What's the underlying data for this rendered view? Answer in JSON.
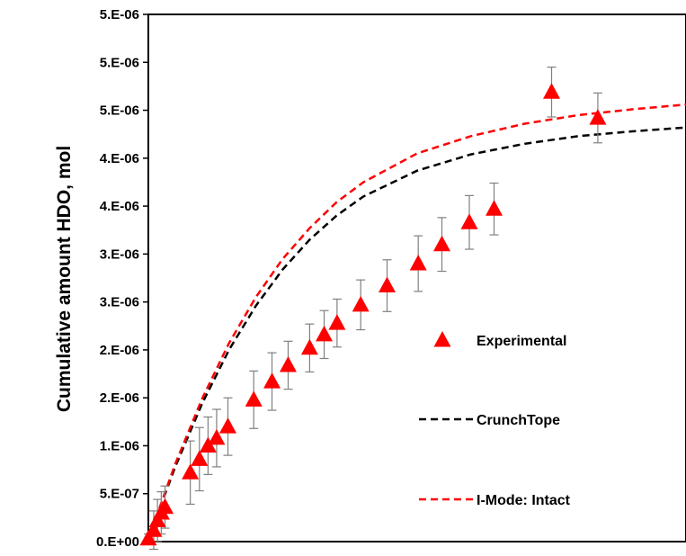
{
  "chart_data": {
    "type": "scatter",
    "title": "",
    "xlabel": "",
    "ylabel": "Cumulative amount HDO, mol",
    "ylim": [
      0,
      5.5e-06
    ],
    "xlim": [
      0,
      100
    ],
    "y_tick_values": [
      0,
      5e-07,
      1e-06,
      1.5e-06,
      2e-06,
      2.5e-06,
      3e-06,
      3.5e-06,
      4e-06,
      4.5e-06,
      5e-06,
      5.5e-06
    ],
    "y_tick_labels": [
      "0.E+00",
      "5.E-07",
      "1.E-06",
      "2.E-06",
      "2.E-06",
      "3.E-06",
      "3.E-06",
      "4.E-06",
      "4.E-06",
      "5.E-06",
      "5.E-06",
      "5.E-06"
    ],
    "grid": false,
    "legend_position": "right",
    "series": [
      {
        "name": "Experimental",
        "kind": "markers",
        "marker": "triangle",
        "color": "#ff0000",
        "error_bar_color": "#808080",
        "x": [
          0.0,
          1.0,
          1.7,
          2.4,
          3.1,
          7.8,
          9.5,
          11.1,
          12.7,
          14.8,
          19.6,
          23.0,
          26.0,
          30.0,
          32.7,
          35.1,
          39.5,
          44.4,
          50.2,
          54.6,
          59.7,
          64.3,
          75.0,
          83.6
        ],
        "y": [
          3e-08,
          1.2e-07,
          2.2e-07,
          3e-07,
          3.6e-07,
          7.2e-07,
          8.6e-07,
          1e-06,
          1.08e-06,
          1.2e-06,
          1.48e-06,
          1.67e-06,
          1.84e-06,
          2.02e-06,
          2.16e-06,
          2.28e-06,
          2.47e-06,
          2.67e-06,
          2.9e-06,
          3.1e-06,
          3.33e-06,
          3.47e-06,
          4.69e-06,
          4.42e-06
        ],
        "err": [
          5e-08,
          2e-07,
          2.2e-07,
          2.2e-07,
          2.2e-07,
          3.3e-07,
          3.3e-07,
          3e-07,
          3e-07,
          3e-07,
          3e-07,
          3e-07,
          2.5e-07,
          2.5e-07,
          2.5e-07,
          2.5e-07,
          2.6e-07,
          2.7e-07,
          2.9e-07,
          2.8e-07,
          2.8e-07,
          2.7e-07,
          2.6e-07,
          2.6e-07
        ]
      },
      {
        "name": "CrunchTope",
        "kind": "line",
        "dash": "dashed",
        "color": "#000000",
        "x": [
          0,
          2,
          5,
          10,
          15,
          20,
          25,
          30,
          35,
          40,
          50,
          60,
          70,
          80,
          90,
          100
        ],
        "y": [
          0,
          3.3e-07,
          7.8e-07,
          1.44e-06,
          2e-06,
          2.46e-06,
          2.84e-06,
          3.15e-06,
          3.4e-06,
          3.6e-06,
          3.87e-06,
          4.04e-06,
          4.15e-06,
          4.23e-06,
          4.28e-06,
          4.32e-06
        ]
      },
      {
        "name": "I-Mode: Intact",
        "kind": "line",
        "dash": "dashed",
        "color": "#ff0000",
        "x": [
          0,
          2,
          5,
          10,
          15,
          20,
          25,
          30,
          35,
          40,
          50,
          60,
          70,
          80,
          90,
          100
        ],
        "y": [
          0,
          3.4e-07,
          8.1e-07,
          1.49e-06,
          2.07e-06,
          2.55e-06,
          2.95e-06,
          3.27e-06,
          3.54e-06,
          3.75e-06,
          4.05e-06,
          4.23e-06,
          4.36e-06,
          4.45e-06,
          4.51e-06,
          4.56e-06
        ]
      }
    ]
  }
}
